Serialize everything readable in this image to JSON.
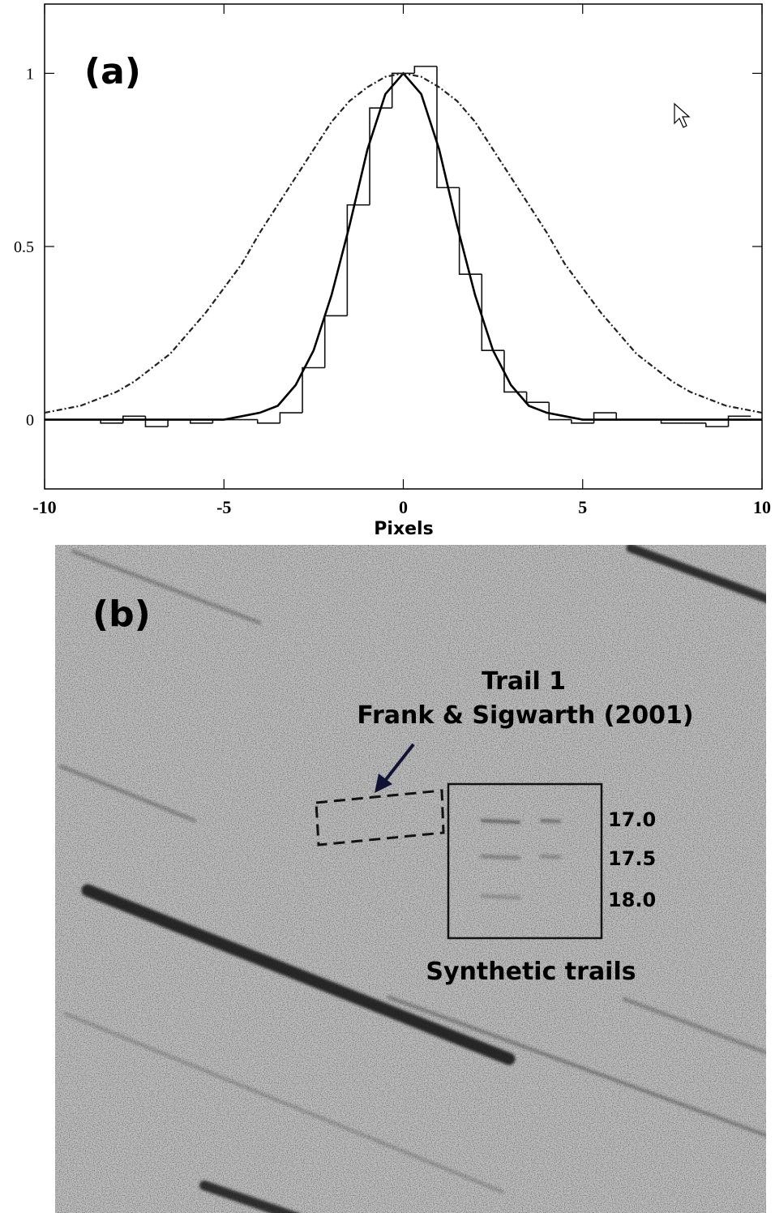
{
  "chart_data": {
    "type": "histogram",
    "panel_label": "(a)",
    "xlabel": "Pixels",
    "xlim": [
      -10,
      10
    ],
    "ylim": [
      -0.2,
      1.2
    ],
    "xticks": [
      -10,
      -5,
      0,
      5,
      10
    ],
    "yticks": [
      0,
      0.5,
      1
    ],
    "color": "#111111",
    "bins": [
      -9.6875,
      -9.0625,
      -8.4375,
      -7.8125,
      -7.1875,
      -6.5625,
      -5.9375,
      -5.3125,
      -4.6875,
      -4.0625,
      -3.4375,
      -2.8125,
      -2.1875,
      -1.5625,
      -0.9375,
      -0.3125,
      0.3125,
      0.9375,
      1.5625,
      2.1875,
      2.8125,
      3.4375,
      4.0625,
      4.6875,
      5.3125,
      5.9375,
      6.5625,
      7.1875,
      7.8125,
      8.4375,
      9.0625,
      9.6875
    ],
    "values": [
      0,
      0,
      -0.01,
      0.01,
      -0.02,
      0,
      -0.01,
      0,
      0,
      -0.01,
      0.02,
      0.15,
      0.3,
      0.62,
      0.9,
      1.0,
      1.02,
      0.67,
      0.42,
      0.2,
      0.08,
      0.05,
      0,
      -0.01,
      0.02,
      0,
      0,
      -0.01,
      -0.01,
      -0.02,
      0.01
    ],
    "curves": {
      "type": "line",
      "x": [
        -10,
        -9.5,
        -9,
        -8.5,
        -8,
        -7.5,
        -7,
        -6.5,
        -6,
        -5.5,
        -5,
        -4.5,
        -4,
        -3.5,
        -3,
        -2.5,
        -2,
        -1.5,
        -1,
        -0.5,
        0,
        0.5,
        1,
        1.5,
        2,
        2.5,
        3,
        3.5,
        4,
        4.5,
        5,
        5.5,
        6,
        6.5,
        7,
        7.5,
        8,
        8.5,
        9,
        9.5,
        10
      ],
      "series": [
        {
          "color": "#000000",
          "dash": "solid",
          "values": [
            0,
            0,
            0,
            0,
            0,
            0,
            0,
            0,
            0,
            0,
            0,
            0.01,
            0.02,
            0.04,
            0.1,
            0.2,
            0.36,
            0.56,
            0.78,
            0.94,
            1,
            0.94,
            0.78,
            0.56,
            0.36,
            0.2,
            0.1,
            0.04,
            0.02,
            0.01,
            0,
            0,
            0,
            0,
            0,
            0,
            0,
            0,
            0,
            0,
            0
          ]
        },
        {
          "color": "#222222",
          "dash": "dashdot",
          "values": [
            0.02,
            0.03,
            0.04,
            0.06,
            0.08,
            0.11,
            0.15,
            0.19,
            0.25,
            0.31,
            0.38,
            0.45,
            0.54,
            0.62,
            0.7,
            0.78,
            0.86,
            0.92,
            0.96,
            0.99,
            1,
            0.99,
            0.96,
            0.92,
            0.86,
            0.78,
            0.7,
            0.62,
            0.54,
            0.45,
            0.38,
            0.31,
            0.25,
            0.19,
            0.15,
            0.11,
            0.08,
            0.06,
            0.04,
            0.03,
            0.02
          ]
        }
      ]
    }
  },
  "image_panel": {
    "panel_label": "(b)",
    "trail_title": "Trail 1",
    "trail_source": "Frank & Sigwarth (2001)",
    "magnitudes": [
      "17.0",
      "17.5",
      "18.0"
    ],
    "synthetic_label": "Synthetic trails"
  }
}
